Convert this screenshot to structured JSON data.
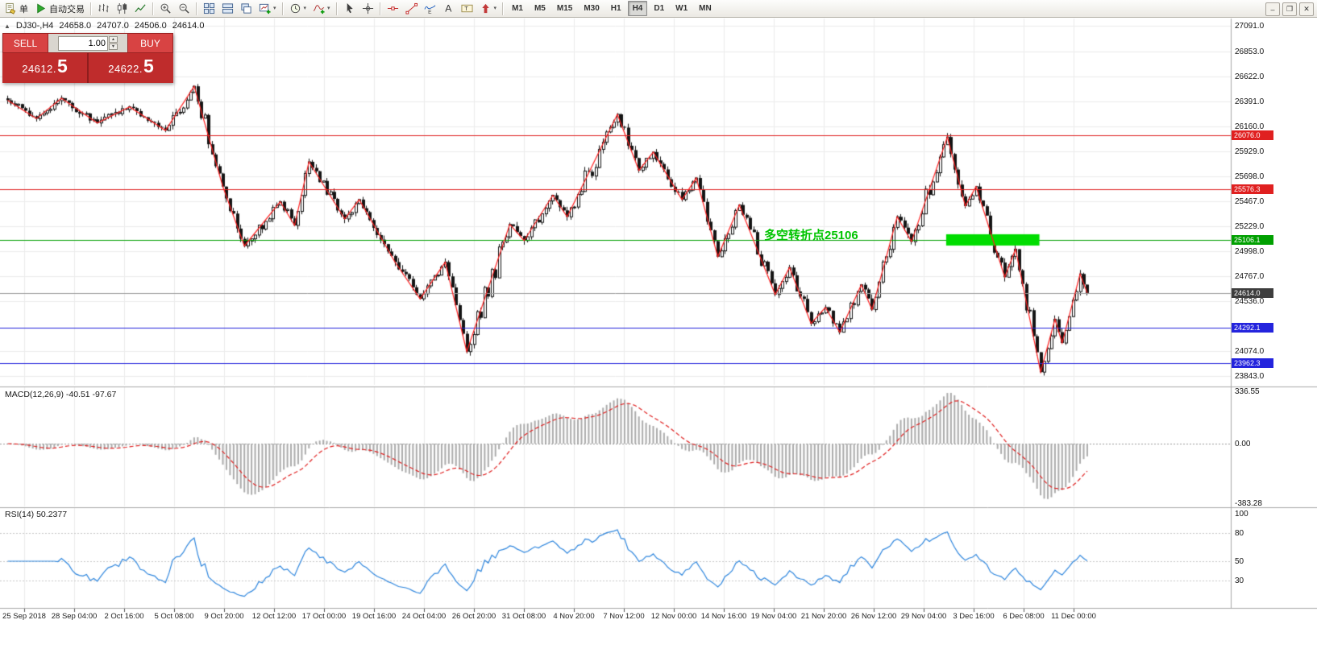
{
  "toolbar": {
    "new_order": "单",
    "autotrade": "自动交易",
    "icon_groups": [
      [
        "bar-chart",
        "candlestick-chart",
        "line-chart"
      ],
      [
        "zoom-in",
        "zoom-out"
      ],
      [
        "tile-windows",
        "arrange-windows",
        "cascade-windows",
        "new-chart"
      ],
      [
        "timeframes-menu",
        "indicators-menu"
      ],
      [
        "cursor",
        "crosshair"
      ],
      [
        "horizontal-line",
        "trendline",
        "elliott-wave",
        "text-tool",
        "text-label",
        "arrow-tools"
      ]
    ],
    "menus_with_caret": [
      "new-chart",
      "timeframes-menu",
      "indicators-menu",
      "arrow-tools"
    ],
    "timeframes": [
      "M1",
      "M5",
      "M15",
      "M30",
      "H1",
      "H4",
      "D1",
      "W1",
      "MN"
    ],
    "active_timeframe": "H4",
    "window_controls": [
      "minimize",
      "restore",
      "close"
    ]
  },
  "header": {
    "symbol": "DJ30-,H4",
    "open": "24658.0",
    "high": "24707.0",
    "low": "24506.0",
    "close": "24614.0"
  },
  "trade_panel": {
    "sell_label": "SELL",
    "buy_label": "BUY",
    "volume": "1.00",
    "bid_main": "24612.",
    "bid_big": "5",
    "ask_main": "24622.",
    "ask_big": "5",
    "colors": {
      "panel": "#bf2c2c",
      "button": "#d84343",
      "divider": "#8e1d1d"
    }
  },
  "annotation": {
    "text": "多空转折点25106",
    "color": "#00c400"
  },
  "indicators": {
    "macd_label": "MACD(12,26,9) -40.51 -97.67",
    "rsi_label": "RSI(14) 50.2377"
  },
  "chart_data": {
    "type": "candlestick",
    "symbol": "DJ30-",
    "timeframe": "H4",
    "ohlc_current": {
      "open": 24658.0,
      "high": 24707.0,
      "low": 24506.0,
      "close": 24614.0
    },
    "bid": 24612.5,
    "ask": 24622.5,
    "volume_lots": 1.0,
    "price_axis_labels": [
      "27091.0",
      "26853.0",
      "26622.0",
      "26391.0",
      "26160.0",
      "25929.0",
      "25698.0",
      "25467.0",
      "25229.0",
      "24998.0",
      "24767.0",
      "24536.0",
      "24074.0",
      "23843.0"
    ],
    "time_axis_labels": [
      "25 Sep 2018",
      "28 Sep 04:00",
      "2 Oct 16:00",
      "5 Oct 08:00",
      "9 Oct 20:00",
      "12 Oct 12:00",
      "17 Oct 00:00",
      "19 Oct 16:00",
      "24 Oct 04:00",
      "26 Oct 20:00",
      "31 Oct 08:00",
      "4 Nov 20:00",
      "7 Nov 12:00",
      "12 Nov 00:00",
      "14 Nov 16:00",
      "19 Nov 04:00",
      "21 Nov 20:00",
      "26 Nov 12:00",
      "29 Nov 04:00",
      "3 Dec 16:00",
      "6 Dec 08:00",
      "11 Dec 00:00"
    ],
    "levels": [
      {
        "value": 26076.0,
        "label": "26076.0",
        "color": "#e02020",
        "kind": "resistance-line"
      },
      {
        "value": 25576.3,
        "label": "25576.3",
        "color": "#e02020",
        "kind": "resistance-line"
      },
      {
        "value": 25106.1,
        "label": "25106.1",
        "color": "#00a000",
        "kind": "pivot-line"
      },
      {
        "value": 24292.1,
        "label": "24292.1",
        "color": "#2424dd",
        "kind": "support-line"
      },
      {
        "value": 23962.3,
        "label": "23962.3",
        "color": "#2424dd",
        "kind": "support-line"
      }
    ],
    "current_price": {
      "value": 24614.0,
      "label": "24614.0",
      "line_color": "#9b9b9b",
      "badge_color": "#3d3d3d"
    },
    "highlight_rect": {
      "start_index": 262,
      "end_index": 288,
      "price": 25106.1,
      "color": "#00dd00"
    },
    "candle_count": 302,
    "zigzag_pivots": [
      [
        0,
        26400
      ],
      [
        8,
        26230
      ],
      [
        15,
        26420
      ],
      [
        25,
        26190
      ],
      [
        34,
        26340
      ],
      [
        44,
        26120
      ],
      [
        52,
        26530
      ],
      [
        60,
        25600
      ],
      [
        66,
        25050
      ],
      [
        76,
        25460
      ],
      [
        80,
        25240
      ],
      [
        84,
        25830
      ],
      [
        94,
        25300
      ],
      [
        98,
        25480
      ],
      [
        108,
        24900
      ],
      [
        115,
        24560
      ],
      [
        122,
        24900
      ],
      [
        128,
        24070
      ],
      [
        140,
        25250
      ],
      [
        144,
        25100
      ],
      [
        152,
        25520
      ],
      [
        156,
        25320
      ],
      [
        170,
        26270
      ],
      [
        176,
        25750
      ],
      [
        180,
        25920
      ],
      [
        188,
        25480
      ],
      [
        192,
        25680
      ],
      [
        198,
        24950
      ],
      [
        204,
        25430
      ],
      [
        214,
        24600
      ],
      [
        218,
        24850
      ],
      [
        224,
        24330
      ],
      [
        228,
        24480
      ],
      [
        232,
        24250
      ],
      [
        238,
        24690
      ],
      [
        241,
        24460
      ],
      [
        248,
        25320
      ],
      [
        252,
        25090
      ],
      [
        262,
        26060
      ],
      [
        267,
        25420
      ],
      [
        270,
        25600
      ],
      [
        278,
        24760
      ],
      [
        281,
        25020
      ],
      [
        288,
        23880
      ],
      [
        292,
        24370
      ],
      [
        294,
        24150
      ],
      [
        299,
        24790
      ],
      [
        301,
        24614
      ]
    ],
    "macd": {
      "params": [
        12,
        26,
        9
      ],
      "current": [
        -40.51,
        -97.67
      ],
      "scale_labels": [
        "336.55",
        "0.00",
        "-383.28"
      ],
      "scale_max": 336.55,
      "scale_min": -383.28,
      "histogram_color": "#ababab",
      "signal_color": "#e02020"
    },
    "rsi": {
      "period": 14,
      "current": 50.2377,
      "scale_labels": [
        "100",
        "80",
        "50",
        "30"
      ],
      "level_lines": [
        80,
        50,
        30
      ],
      "line_color": "#2e86de"
    }
  }
}
